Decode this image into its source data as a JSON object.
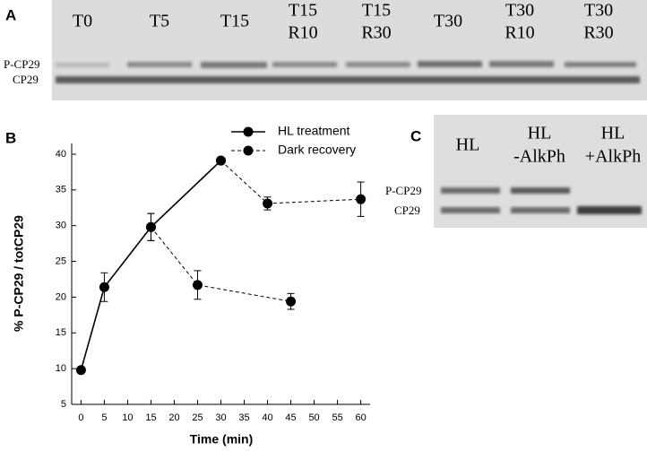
{
  "panel_labels": [
    "A",
    "B",
    "C"
  ],
  "blot_a": {
    "lanes": [
      [
        "T0"
      ],
      [
        "T5"
      ],
      [
        "T15"
      ],
      [
        "T15",
        "R10"
      ],
      [
        "T15",
        "R30"
      ],
      [
        "T30"
      ],
      [
        "T30",
        "R10"
      ],
      [
        "T30",
        "R30"
      ]
    ],
    "bands": [
      "P-CP29",
      "CP29"
    ]
  },
  "blot_c": {
    "lanes": [
      [
        "HL"
      ],
      [
        "HL",
        "-AlkPh"
      ],
      [
        "HL",
        "+AlkPh"
      ]
    ],
    "bands": [
      "P-CP29",
      "CP29"
    ]
  },
  "chart_data": {
    "type": "line",
    "xlabel": "Time (min)",
    "ylabel": "% P-CP29 / totCP29",
    "xlim": [
      -2,
      62
    ],
    "xticks": [
      0,
      5,
      10,
      15,
      20,
      25,
      30,
      35,
      40,
      45,
      50,
      55,
      60
    ],
    "ylim": [
      5,
      41.5
    ],
    "yticks": [
      5,
      10,
      15,
      20,
      25,
      30,
      35,
      40
    ],
    "legend": "top",
    "series": [
      {
        "name": "HL treatment",
        "color": "#000000",
        "line_style": "solid",
        "x": [
          0,
          5,
          15,
          30
        ],
        "values": [
          9.8,
          21.4,
          29.8,
          39.1
        ],
        "errors": [
          null,
          2,
          1.9,
          null
        ]
      },
      {
        "name": "Dark recovery",
        "color": "#000000",
        "line_style": "dashed",
        "x": [
          15,
          25,
          45,
          null,
          30,
          40,
          60
        ],
        "values": [
          29.8,
          21.7,
          19.4,
          null,
          39.1,
          33.1,
          33.7
        ],
        "errors": [
          1.9,
          2,
          1.1,
          null,
          null,
          0.9,
          2.4
        ]
      }
    ]
  }
}
